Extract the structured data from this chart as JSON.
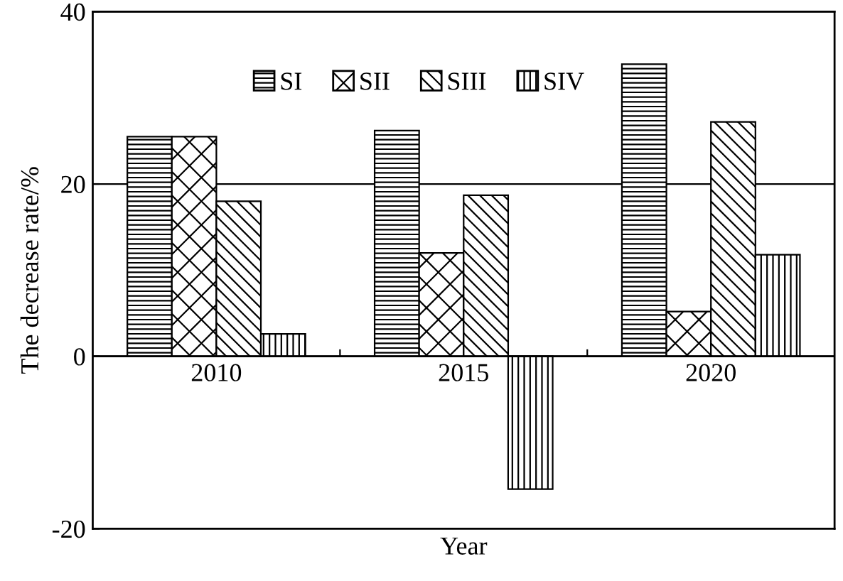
{
  "chart_data": {
    "type": "bar",
    "xlabel": "Year",
    "ylabel": "The decrease rate/%",
    "categories": [
      "2010",
      "2015",
      "2020"
    ],
    "series": [
      {
        "name": "SI",
        "color": "#000000",
        "values": [
          25.5,
          26.2,
          33.9
        ]
      },
      {
        "name": "SII",
        "color": "#000000",
        "values": [
          25.5,
          12.0,
          5.2
        ]
      },
      {
        "name": "SIII",
        "color": "#000000",
        "values": [
          18.0,
          18.7,
          27.2
        ]
      },
      {
        "name": "SIV",
        "color": "#000000",
        "values": [
          2.6,
          -15.4,
          11.8
        ]
      }
    ],
    "ylim": [
      -20,
      40
    ],
    "yticks": [
      -20,
      0,
      20,
      40
    ],
    "grid": "y",
    "legend": "top"
  }
}
